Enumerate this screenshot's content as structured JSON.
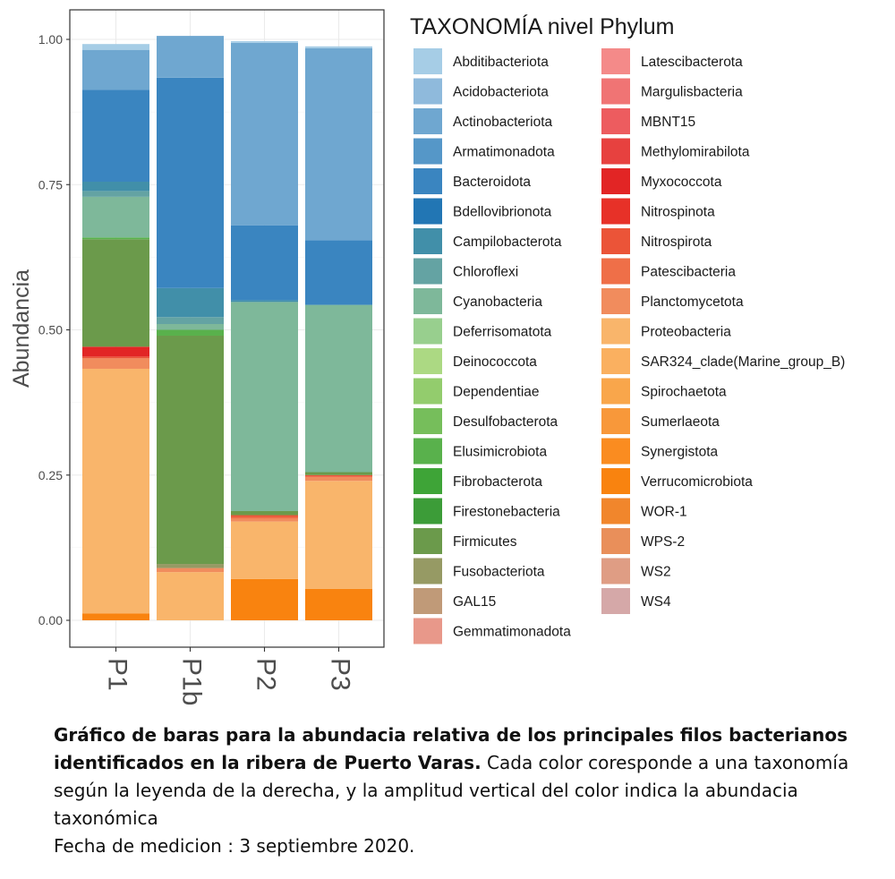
{
  "chart_data": {
    "type": "bar",
    "stacked": true,
    "categories": [
      "P1",
      "P1b",
      "P2",
      "P3"
    ],
    "ylabel": "Abundancia",
    "xlabel": "",
    "ylim": [
      0,
      1
    ],
    "yticks": [
      "0.00",
      "0.25",
      "0.50",
      "0.75",
      "1.00"
    ],
    "ytick_values": [
      0,
      0.25,
      0.5,
      0.75,
      1.0
    ],
    "legend_title": "TAXONOMÍA nivel Phylum",
    "legend_position": "right",
    "grid": true,
    "series": [
      {
        "name": "Abditibacteriota",
        "color": "#a6cde6",
        "values": [
          0.01,
          0.0,
          0.003,
          0.003
        ]
      },
      {
        "name": "Acidobacteriota",
        "color": "#8fbadc",
        "values": [
          0.0,
          0.0,
          0.0,
          0.0
        ]
      },
      {
        "name": "Actinobacteriota",
        "color": "#6fa7d0",
        "values": [
          0.069,
          0.072,
          0.314,
          0.331
        ]
      },
      {
        "name": "Armatimonadota",
        "color": "#5597c8",
        "values": [
          0.0,
          0.0,
          0.0,
          0.0
        ]
      },
      {
        "name": "Bacteroidota",
        "color": "#3a85c0",
        "values": [
          0.158,
          0.362,
          0.129,
          0.111
        ]
      },
      {
        "name": "Bdellovibrionota",
        "color": "#2276b4",
        "values": [
          0.0,
          0.0,
          0.0,
          0.0
        ]
      },
      {
        "name": "Campilobacterota",
        "color": "#418fa9",
        "values": [
          0.016,
          0.05,
          0.003,
          0.0
        ]
      },
      {
        "name": "Chloroflexi",
        "color": "#64a3a3",
        "values": [
          0.01,
          0.012,
          0.0,
          0.0
        ]
      },
      {
        "name": "Cyanobacteria",
        "color": "#7eb89a",
        "values": [
          0.07,
          0.01,
          0.36,
          0.288
        ]
      },
      {
        "name": "Deferrisomatota",
        "color": "#98cf8e",
        "values": [
          0.0,
          0.0,
          0.0,
          0.0
        ]
      },
      {
        "name": "Deinococcota",
        "color": "#acd983",
        "values": [
          0.0,
          0.0,
          0.0,
          0.0
        ]
      },
      {
        "name": "Dependentiae",
        "color": "#93cc6d",
        "values": [
          0.0,
          0.0,
          0.0,
          0.0
        ]
      },
      {
        "name": "Desulfobacterota",
        "color": "#76be5b",
        "values": [
          0.0,
          0.0,
          0.0,
          0.0
        ]
      },
      {
        "name": "Elusimicrobiota",
        "color": "#59b14c",
        "values": [
          0.003,
          0.01,
          0.0,
          0.0
        ]
      },
      {
        "name": "Fibrobacterota",
        "color": "#3ea437",
        "values": [
          0.0,
          0.0,
          0.0,
          0.0
        ]
      },
      {
        "name": "Firestonebacteria",
        "color": "#3c9c38",
        "values": [
          0.0,
          0.0,
          0.0,
          0.0
        ]
      },
      {
        "name": "Firmicutes",
        "color": "#6b9a4b",
        "values": [
          0.185,
          0.393,
          0.007,
          0.005
        ]
      },
      {
        "name": "Fusobacteriota",
        "color": "#969a64",
        "values": [
          0.0,
          0.007,
          0.0,
          0.0
        ]
      },
      {
        "name": "GAL15",
        "color": "#c09a78",
        "values": [
          0.0,
          0.0,
          0.0,
          0.0
        ]
      },
      {
        "name": "Gemmatimonadota",
        "color": "#e8988a",
        "values": [
          0.0,
          0.0,
          0.0,
          0.0
        ]
      },
      {
        "name": "Latescibacterota",
        "color": "#f48a89",
        "values": [
          0.0,
          0.0,
          0.0,
          0.0
        ]
      },
      {
        "name": "Margulisbacteria",
        "color": "#f07474",
        "values": [
          0.0,
          0.0,
          0.0,
          0.0
        ]
      },
      {
        "name": "MBNT15",
        "color": "#ed5c5f",
        "values": [
          0.0,
          0.0,
          0.0,
          0.0
        ]
      },
      {
        "name": "Methylomirabilota",
        "color": "#e7413f",
        "values": [
          0.0,
          0.0,
          0.0,
          0.0
        ]
      },
      {
        "name": "Myxococcota",
        "color": "#e22525",
        "values": [
          0.017,
          0.0,
          0.0,
          0.0
        ]
      },
      {
        "name": "Nitrospinota",
        "color": "#e73128",
        "values": [
          0.0,
          0.0,
          0.0,
          0.0
        ]
      },
      {
        "name": "Nitrospirota",
        "color": "#eb5438",
        "values": [
          0.003,
          0.0,
          0.003,
          0.003
        ]
      },
      {
        "name": "Patescibacteria",
        "color": "#ef6f48",
        "values": [
          0.0,
          0.0,
          0.003,
          0.0
        ]
      },
      {
        "name": "Planctomycetota",
        "color": "#f18c5d",
        "values": [
          0.018,
          0.007,
          0.005,
          0.007
        ]
      },
      {
        "name": "Proteobacteria",
        "color": "#f9b56b",
        "values": [
          0.421,
          0.083,
          0.099,
          0.186
        ]
      },
      {
        "name": "SAR324_clade(Marine_group_B)",
        "color": "#fab060",
        "values": [
          0.0,
          0.0,
          0.0,
          0.0
        ]
      },
      {
        "name": "Spirochaetota",
        "color": "#f9a64b",
        "values": [
          0.0,
          0.0,
          0.0,
          0.0
        ]
      },
      {
        "name": "Sumerlaeota",
        "color": "#f8983a",
        "values": [
          0.0,
          0.0,
          0.0,
          0.0
        ]
      },
      {
        "name": "Synergistota",
        "color": "#fa8c20",
        "values": [
          0.0,
          0.0,
          0.0,
          0.0
        ]
      },
      {
        "name": "Verrucomicrobiota",
        "color": "#f9830f",
        "values": [
          0.012,
          0.0,
          0.071,
          0.054
        ]
      },
      {
        "name": "WOR-1",
        "color": "#f1862c",
        "values": [
          0.0,
          0.0,
          0.0,
          0.0
        ]
      },
      {
        "name": "WPS-2",
        "color": "#e98f5a",
        "values": [
          0.0,
          0.0,
          0.0,
          0.0
        ]
      },
      {
        "name": "WS2",
        "color": "#df9d84",
        "values": [
          0.0,
          0.0,
          0.0,
          0.0
        ]
      },
      {
        "name": "WS4",
        "color": "#d5a8a8",
        "values": [
          0.0,
          0.0,
          0.0,
          0.0
        ]
      }
    ]
  },
  "caption": {
    "bold_line1": "Gráfico de baras para la abundacia relativa de los principales filos bacterianos",
    "bold_line2": "identificados en  la ribera de Puerto Varas.",
    "normal_line2": " Cada color coresponde a una taxonomía",
    "line3": "según la leyenda de la derecha, y la amplitud vertical del color indica la abundacia",
    "line4": "taxonómica",
    "line5": "Fecha de medicion : 3 septiembre 2020."
  }
}
